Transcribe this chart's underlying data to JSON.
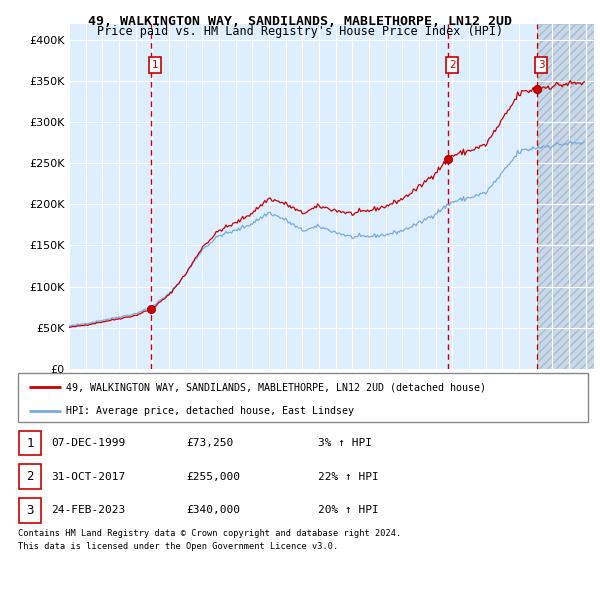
{
  "title1": "49, WALKINGTON WAY, SANDILANDS, MABLETHORPE, LN12 2UD",
  "title2": "Price paid vs. HM Land Registry's House Price Index (HPI)",
  "legend_house": "49, WALKINGTON WAY, SANDILANDS, MABLETHORPE, LN12 2UD (detached house)",
  "legend_hpi": "HPI: Average price, detached house, East Lindsey",
  "sale1_date": "07-DEC-1999",
  "sale1_price": 73250,
  "sale1_pct": "3% ↑ HPI",
  "sale2_date": "31-OCT-2017",
  "sale2_price": 255000,
  "sale2_pct": "22% ↑ HPI",
  "sale3_date": "24-FEB-2023",
  "sale3_price": 340000,
  "sale3_pct": "20% ↑ HPI",
  "footer1": "Contains HM Land Registry data © Crown copyright and database right 2024.",
  "footer2": "This data is licensed under the Open Government Licence v3.0.",
  "house_color": "#cc0000",
  "hpi_color": "#7aaadd",
  "bg_color": "#ddeeff",
  "grid_color": "#ffffff",
  "dashed_color": "#cc0000",
  "ylim_max": 420000,
  "xlim_start": 1995.0,
  "xlim_end": 2026.5,
  "hpi_base": {
    "1995.0": 52000,
    "1996.0": 55000,
    "1997.0": 59000,
    "1998.0": 63000,
    "1999.0": 67000,
    "2000.0": 76000,
    "2001.0": 91000,
    "2002.0": 115000,
    "2003.0": 145000,
    "2004.0": 162000,
    "2005.0": 168000,
    "2006.0": 177000,
    "2007.0": 190000,
    "2008.0": 181000,
    "2009.0": 168000,
    "2010.0": 173000,
    "2011.0": 166000,
    "2012.0": 160000,
    "2013.0": 161000,
    "2014.0": 163000,
    "2015.0": 168000,
    "2016.0": 177000,
    "2017.0": 189000,
    "2018.0": 203000,
    "2019.0": 208000,
    "2020.0": 214000,
    "2021.0": 238000,
    "2022.0": 264000,
    "2023.0": 269000,
    "2024.0": 272000,
    "2025.0": 274000,
    "2026.0": 275000
  }
}
